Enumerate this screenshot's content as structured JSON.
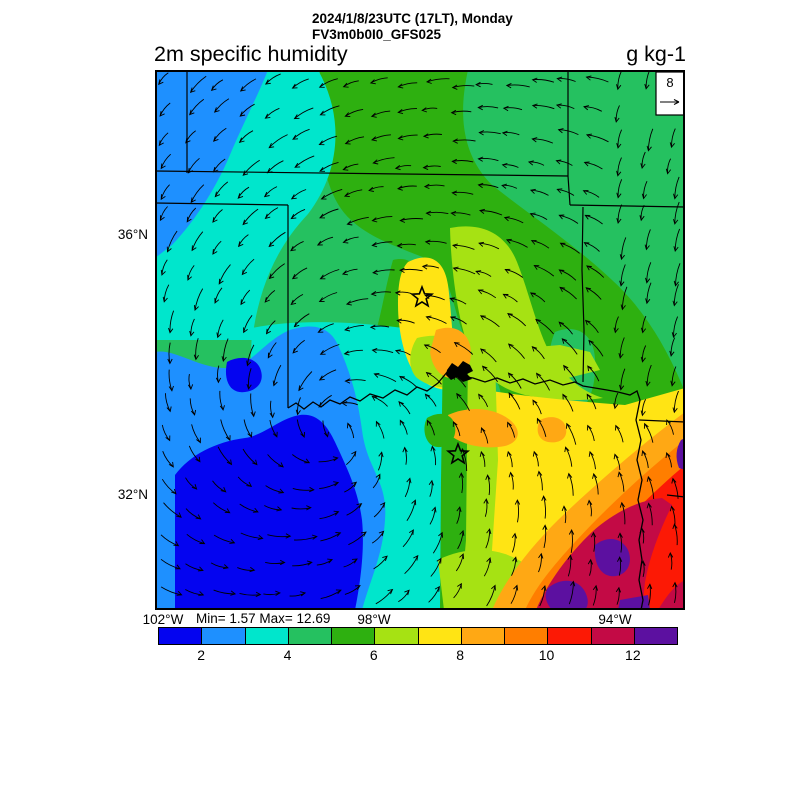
{
  "header": {
    "datetime": "2024/1/8/23UTC (17LT), Monday",
    "model": "FV3m0b0I0_GFS025",
    "field": "2m specific humidity",
    "units": "g kg-1"
  },
  "map": {
    "lat_ticks": [
      "36°N",
      "32°N"
    ],
    "lon_ticks": [
      "102°W",
      "98°W",
      "94°W"
    ],
    "stats": "Min= 1.57 Max= 12.69",
    "ref_vector_label": "8"
  },
  "colorbar": {
    "ticks": [
      "2",
      "4",
      "6",
      "8",
      "10",
      "12"
    ],
    "colors": [
      "#0404F0",
      "#1E90FF",
      "#00E6CC",
      "#25C160",
      "#2EB010",
      "#A6E213",
      "#FFE414",
      "#FFA814",
      "#FF7E00",
      "#FC1905",
      "#C30A45",
      "#5C10A0"
    ]
  },
  "chart_data": {
    "type": "heatmap",
    "title": "2m specific humidity",
    "subtitle": "2024/1/8/23UTC (17LT), Monday — FV3m0b0I0_GFS025",
    "units": "g kg-1",
    "min": 1.57,
    "max": 12.69,
    "contour_levels": [
      1,
      2,
      3,
      4,
      5,
      6,
      7,
      8,
      9,
      10,
      11,
      12,
      13
    ],
    "colorbar_tick_values": [
      2,
      4,
      6,
      8,
      10,
      12
    ],
    "level_colors": [
      "#0404F0",
      "#1E90FF",
      "#00E6CC",
      "#25C160",
      "#2EB010",
      "#A6E213",
      "#FFE414",
      "#FFA814",
      "#FF7E00",
      "#FC1905",
      "#C30A45",
      "#5C10A0"
    ],
    "lat_ticks_deg_north": [
      36,
      32
    ],
    "lon_ticks_deg_west": [
      102,
      98,
      94
    ],
    "wind_reference_value": 8,
    "wind_pattern": "cyclonic (counterclockwise) circulation centered near the Texas/Oklahoma border; northerly winds west, southerly winds east",
    "field_pattern": "dry air (1-4 g/kg, blues) over the western plains, spiral of 4-6 g/kg (cyan/green), moist tongue 7-13 g/kg (yellow-orange-red-purple) over east Texas / Louisiana corner",
    "overlays": [
      "wind vector arrows",
      "state borders",
      "Red River",
      "Lake Texoma",
      "two star markers"
    ]
  }
}
